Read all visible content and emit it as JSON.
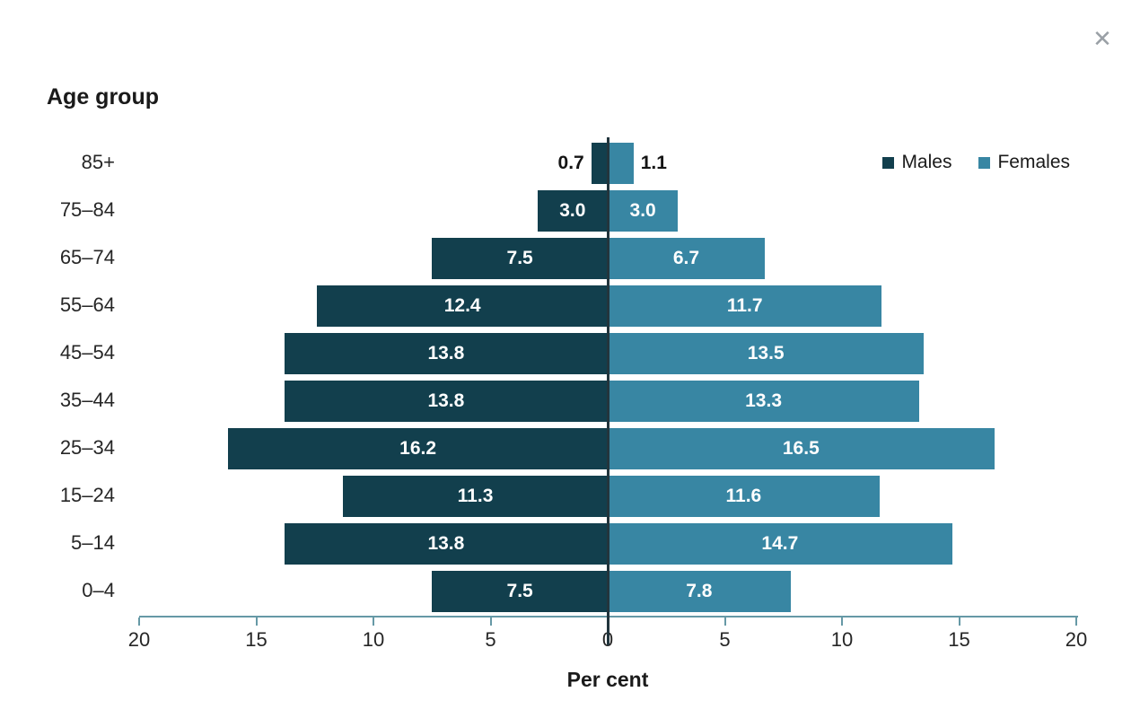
{
  "window": {
    "close_icon": "✕"
  },
  "chart_data": {
    "type": "bar",
    "variant": "population-pyramid",
    "title": "Age group",
    "xlabel": "Per cent",
    "categories": [
      "85+",
      "75–84",
      "65–74",
      "55–64",
      "45–54",
      "35–44",
      "25–34",
      "15–24",
      "5–14",
      "0–4"
    ],
    "series": [
      {
        "name": "Males",
        "side": "left",
        "color": "#123f4d",
        "values": [
          0.7,
          3.0,
          7.5,
          12.4,
          13.8,
          13.8,
          16.2,
          11.3,
          13.8,
          7.5
        ]
      },
      {
        "name": "Females",
        "side": "right",
        "color": "#3886a3",
        "values": [
          1.1,
          3.0,
          6.7,
          11.7,
          13.5,
          13.3,
          16.5,
          11.6,
          14.7,
          7.8
        ]
      }
    ],
    "xlim": [
      -20,
      20
    ],
    "tick_values": [
      20,
      15,
      10,
      5,
      0,
      5,
      10,
      15,
      20
    ],
    "tick_interval": 5,
    "grid": false,
    "legend_position": "top-right",
    "value_labels": "on-bars",
    "label_outside_threshold": 2.0
  },
  "legend": {
    "items": [
      {
        "label": "Males",
        "color": "#123f4d"
      },
      {
        "label": "Females",
        "color": "#3886a3"
      }
    ]
  },
  "colors": {
    "males_bar": "#123f4d",
    "females_bar": "#3886a3",
    "axis": "#6699a6",
    "zero_line": "#22353d",
    "text": "#1f1f1f",
    "bar_label_inside": "#ffffff",
    "bar_label_outside": "#141414",
    "close_icon": "#9aa0a6"
  }
}
